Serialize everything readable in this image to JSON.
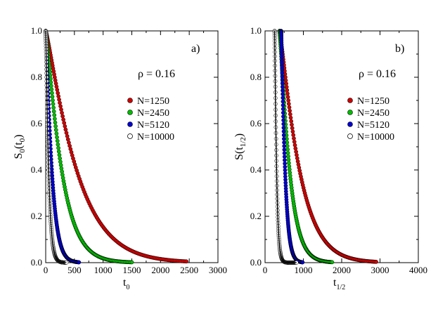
{
  "chart_data": [
    {
      "type": "scatter",
      "panel_label": "a)",
      "annotation": "ρ = 0.16",
      "ylabel_main": "S",
      "ylabel_sub": "0",
      "ylabel_paren_open": "(t",
      "ylabel_paren_sub": "0",
      "ylabel_paren_close": ")",
      "xlabel_main": "t",
      "xlabel_sub": "0",
      "xlim": [
        0,
        3000
      ],
      "ylim": [
        0,
        1.0
      ],
      "xticks": [
        0,
        500,
        1000,
        1500,
        2000,
        2500,
        3000
      ],
      "xtick_labels": [
        "0",
        "500",
        "1000",
        "1500",
        "2000",
        "2500",
        "3000"
      ],
      "yticks": [
        0,
        0.2,
        0.4,
        0.6,
        0.8,
        1.0
      ],
      "ytick_labels": [
        "0.0",
        "0.2",
        "0.4",
        "0.6",
        "0.8",
        "1.0"
      ],
      "legend_position": "right",
      "series": [
        {
          "name": "N=1250",
          "color": "#cc0000",
          "t_start": 0,
          "tau": 580,
          "t_max": 2450
        },
        {
          "name": "N=2450",
          "color": "#00bb00",
          "t_start": 0,
          "tau": 300,
          "t_max": 1500
        },
        {
          "name": "N=5120",
          "color": "#0000cc",
          "t_start": 0,
          "tau": 115,
          "t_max": 580
        },
        {
          "name": "N=10000",
          "color": "#000000",
          "t_start": 0,
          "tau": 55,
          "t_max": 360
        }
      ]
    },
    {
      "type": "scatter",
      "panel_label": "b)",
      "annotation": "ρ = 0.16",
      "ylabel_main": "S(t",
      "ylabel_sub": "1/2",
      "ylabel_close": ")",
      "xlabel_main": "t",
      "xlabel_sub": "1/2",
      "xlim": [
        0,
        4000
      ],
      "ylim": [
        0,
        1.0
      ],
      "xticks": [
        0,
        1000,
        2000,
        3000,
        4000
      ],
      "xtick_labels": [
        "0",
        "1000",
        "2000",
        "3000",
        "4000"
      ],
      "yticks": [
        0,
        0.2,
        0.4,
        0.6,
        0.8,
        1.0
      ],
      "ytick_labels": [
        "0.0",
        "0.2",
        "0.4",
        "0.6",
        "0.8",
        "1.0"
      ],
      "legend_position": "right",
      "series": [
        {
          "name": "N=1250",
          "color": "#cc0000",
          "t_start": 380,
          "tau": 560,
          "t_max": 2900
        },
        {
          "name": "N=2450",
          "color": "#00bb00",
          "t_start": 380,
          "tau": 280,
          "t_max": 1750
        },
        {
          "name": "N=5120",
          "color": "#0000cc",
          "t_start": 420,
          "tau": 110,
          "t_max": 980
        },
        {
          "name": "N=10000",
          "color": "#000000",
          "t_start": 250,
          "tau": 55,
          "t_max": 820
        }
      ]
    }
  ]
}
